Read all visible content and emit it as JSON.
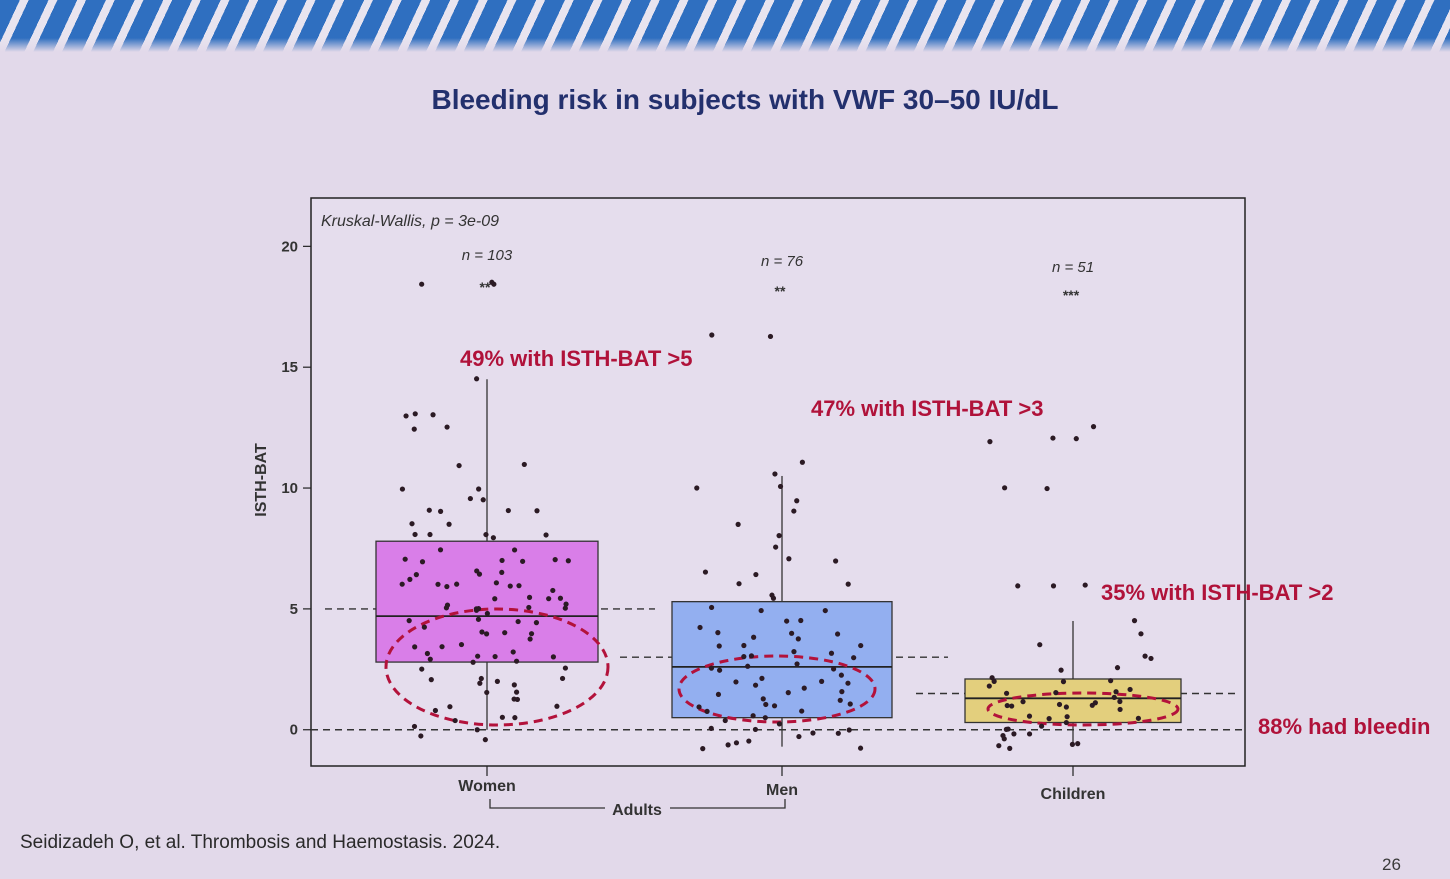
{
  "slide": {
    "title": "Bleeding risk in subjects with VWF 30–50 IU/dL",
    "citation": "Seidizadeh O, et al. Thrombosis and Haemostasis. 2024.",
    "page_number": "26"
  },
  "chart_data": {
    "type": "box",
    "title": "",
    "ylabel": "ISTH-BAT",
    "xlabel": "",
    "ylim": [
      -1.5,
      22
    ],
    "yticks": [
      "0",
      "5",
      "10",
      "15",
      "20"
    ],
    "stat_label": "Kruskal-Wallis, p = 3e-09",
    "group_bracket": "Adults",
    "groups": [
      {
        "name": "Women",
        "n_label": "n = 103",
        "sig": "**",
        "q1": 2.8,
        "median": 4.7,
        "q3": 7.8,
        "whisker_low": 0,
        "whisker_high": 14.5,
        "fill": "#d97ee8",
        "annotation": "49% with ISTH-BAT >5",
        "threshold": 5,
        "points": [
          -0.4,
          -0.3,
          0,
          0.2,
          0.5,
          1,
          1.2,
          1.5,
          1.5,
          2,
          2,
          2.2,
          2.5,
          2.5,
          2.8,
          2.8,
          3,
          3,
          3,
          3.2,
          3.5,
          3.5,
          3.5,
          4,
          4,
          4,
          4.2,
          4.5,
          4.5,
          4.5,
          5,
          5,
          5,
          5,
          5,
          5,
          5.2,
          5.5,
          5.5,
          5.5,
          6,
          6,
          6,
          6,
          6,
          6,
          6.5,
          6.5,
          6.5,
          7,
          7,
          7,
          7,
          7,
          7.5,
          7.5,
          8,
          8,
          8,
          8,
          8,
          8.5,
          8.5,
          9,
          9,
          9,
          9,
          9.5,
          9.5,
          10,
          10,
          11,
          11,
          12.5,
          12.5,
          13,
          13,
          13,
          14.5,
          18.5,
          18.5,
          18.5,
          0.5,
          1,
          2,
          3,
          4,
          4.5,
          5.5,
          6,
          6.5,
          7,
          3.2,
          3.8,
          4.8,
          5.8,
          6.2,
          2.2,
          1.8,
          1.2,
          0.8,
          0.3,
          5.2
        ]
      },
      {
        "name": "Men",
        "n_label": "n = 76",
        "sig": "**",
        "q1": 0.5,
        "median": 2.6,
        "q3": 5.3,
        "whisker_low": -0.7,
        "whisker_high": 10.5,
        "fill": "#93aff0",
        "annotation": "47% with ISTH-BAT >3",
        "threshold": 3,
        "points": [
          -0.8,
          -0.6,
          -0.5,
          -0.4,
          -0.3,
          -0.2,
          0,
          0,
          0,
          0.2,
          0.5,
          0.5,
          0.8,
          1,
          1,
          1,
          1.2,
          1.5,
          1.5,
          1.5,
          1.8,
          2,
          2,
          2,
          2.2,
          2.5,
          2.5,
          2.5,
          2.8,
          3,
          3,
          3,
          3.2,
          3.5,
          3.5,
          3.5,
          3.8,
          4,
          4,
          4,
          4.5,
          4.5,
          5,
          5,
          5,
          5.5,
          5.5,
          6,
          6,
          6.5,
          6.5,
          7,
          7,
          7.5,
          8,
          8.5,
          9,
          9.5,
          10,
          10,
          10.5,
          11,
          16.3,
          16.3,
          -0.7,
          0.3,
          1.3,
          2.3,
          3.3,
          4.2,
          0.7,
          1.7,
          2.7,
          3.7,
          -0.1,
          0.9
        ]
      },
      {
        "name": "Children",
        "n_label": "n = 51",
        "sig": "***",
        "q1": 0.3,
        "median": 1.3,
        "q3": 2.1,
        "whisker_low": -0.6,
        "whisker_high": 4.5,
        "fill": "#e3cf7d",
        "annotation": "35% with ISTH-BAT >2",
        "threshold": 2,
        "points": [
          -0.8,
          -0.7,
          -0.6,
          -0.5,
          -0.4,
          -0.3,
          -0.2,
          0,
          0,
          0.2,
          0.3,
          0.5,
          0.5,
          0.5,
          0.8,
          1,
          1,
          1,
          1,
          1.2,
          1.2,
          1.5,
          1.5,
          1.5,
          1.8,
          2,
          2,
          2,
          2.2,
          2.5,
          2.5,
          3,
          3,
          3.5,
          4,
          4.5,
          6,
          6,
          6,
          10,
          10,
          12,
          12,
          12,
          12.5,
          -0.1,
          0.6,
          1.1,
          1.6,
          0.9,
          1.4
        ]
      }
    ],
    "reference_lines": [
      5,
      3,
      1.5,
      0
    ],
    "bleeding_annotation": "88% had bleedin"
  }
}
